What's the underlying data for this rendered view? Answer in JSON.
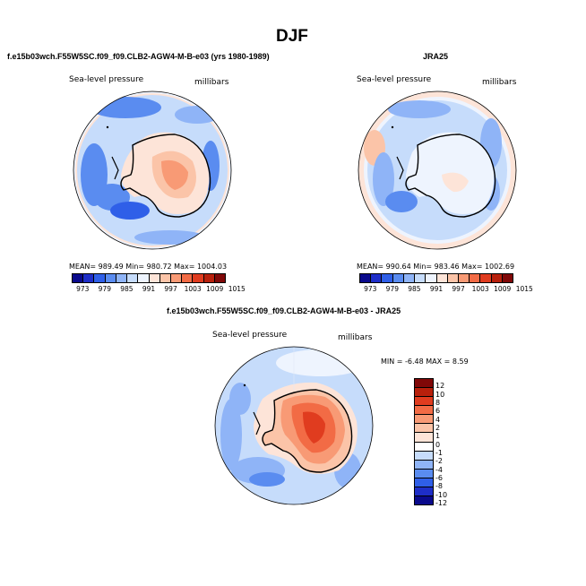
{
  "title": "DJF",
  "panels": {
    "model": {
      "header": "f.e15b03wch.F55W5SC.f09_f09.CLB2-AGW4-M-B-e03 (yrs 1980-1989)",
      "field_label": "Sea-level pressure",
      "units_label": "millibars",
      "stats": "MEAN= 989.49   Min= 980.72   Max= 1004.03"
    },
    "obs": {
      "header": "JRA25",
      "field_label": "Sea-level pressure",
      "units_label": "millibars",
      "stats": "MEAN= 990.64   Min= 983.46   Max= 1002.69"
    },
    "diff": {
      "header": "f.e15b03wch.F55W5SC.f09_f09.CLB2-AGW4-M-B-e03 - JRA25",
      "field_label": "Sea-level pressure",
      "units_label": "millibars",
      "stats": "MIN =   -6.48 MAX =    8.59"
    }
  },
  "colorbar_abs": {
    "ticks": [
      "973",
      "979",
      "985",
      "991",
      "997",
      "1003",
      "1009",
      "1015"
    ],
    "colors": [
      "#0a0a8c",
      "#1e2ec8",
      "#2f5fe8",
      "#5a8cf0",
      "#8fb4f7",
      "#c6dcfb",
      "#eef4fe",
      "#fde4d8",
      "#fbc4a8",
      "#f89a75",
      "#f26b45",
      "#e03c1f",
      "#b8200c",
      "#800808"
    ]
  },
  "colorbar_diff": {
    "ticks": [
      "12",
      "10",
      "8",
      "6",
      "4",
      "2",
      "1",
      "0",
      "-1",
      "-2",
      "-4",
      "-6",
      "-8",
      "-10",
      "-12"
    ],
    "colors": [
      "#800808",
      "#b8200c",
      "#e03c1f",
      "#f26b45",
      "#f89a75",
      "#fbc4a8",
      "#fde4d8",
      "#ffffff",
      "#c6dcfb",
      "#8fb4f7",
      "#5a8cf0",
      "#2f5fe8",
      "#1e2ec8",
      "#0a0a8c"
    ]
  }
}
